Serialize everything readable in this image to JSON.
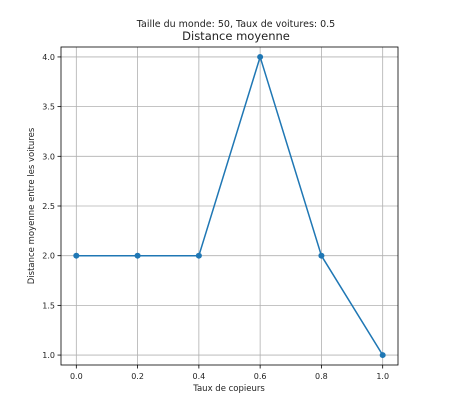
{
  "chart_data": {
    "type": "line",
    "suptitle": "Taille du monde: 50, Taux de voitures: 0.5",
    "title": "Distance moyenne",
    "xlabel": "Taux de copieurs",
    "ylabel": "Distance moyenne entre les voitures",
    "x": [
      0.0,
      0.2,
      0.4,
      0.6,
      0.8,
      1.0
    ],
    "series": [
      {
        "values": [
          2.0,
          2.0,
          2.0,
          4.0,
          2.0,
          1.0
        ]
      }
    ],
    "xlim": [
      -0.05,
      1.05
    ],
    "ylim": [
      0.9,
      4.1
    ],
    "xticks": [
      "0.0",
      "0.2",
      "0.4",
      "0.6",
      "0.8",
      "1.0"
    ],
    "yticks": [
      "1.0",
      "1.5",
      "2.0",
      "2.5",
      "3.0",
      "3.5",
      "4.0"
    ],
    "grid": true,
    "line_color": "#1f77b4",
    "marker": "circle"
  }
}
